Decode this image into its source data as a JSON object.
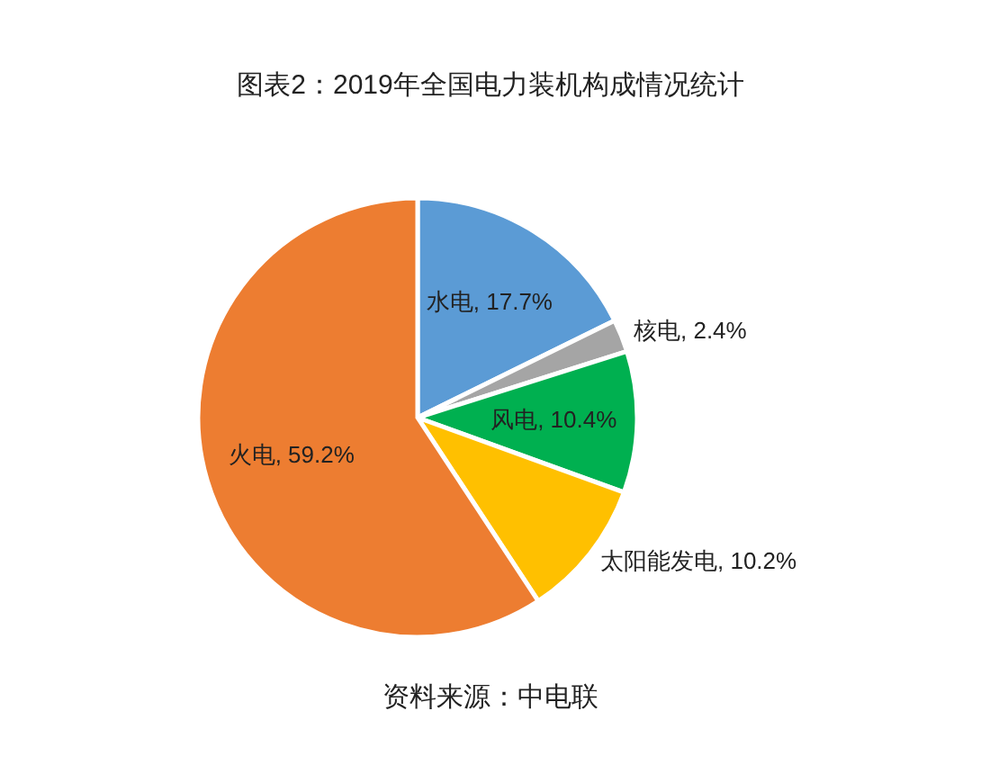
{
  "chart_data": {
    "type": "pie",
    "title": "图表2：2019年全国电力装机构成情况统计",
    "categories": [
      "水电",
      "核电",
      "风电",
      "太阳能发电",
      "火电"
    ],
    "values": [
      17.7,
      2.4,
      10.4,
      10.2,
      59.2
    ],
    "value_labels": [
      "17.7%",
      "2.4%",
      "10.4%",
      "10.2%",
      "59.2%"
    ],
    "colors": [
      "#5b9bd5",
      "#a5a5a5",
      "#00b050",
      "#ffc000",
      "#ed7d31"
    ],
    "annotations": [
      "资料来源：中电联"
    ]
  }
}
